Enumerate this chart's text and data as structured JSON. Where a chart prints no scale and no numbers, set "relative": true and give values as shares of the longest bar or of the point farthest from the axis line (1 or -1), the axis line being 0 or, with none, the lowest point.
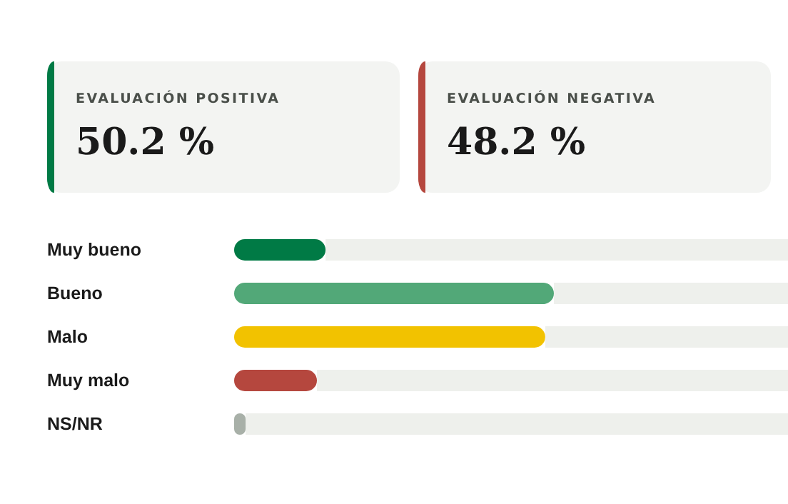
{
  "chart_data": {
    "type": "bar",
    "orientation": "horizontal",
    "relative": true,
    "categories": [
      "Muy bueno",
      "Bueno",
      "Malo",
      "Muy malo",
      "NS/NR"
    ],
    "values": [
      0.286,
      1,
      0.973,
      0.259,
      0.036
    ],
    "colors": [
      "#007a45",
      "#52a878",
      "#f2c200",
      "#b5473e",
      "#a8b0a8"
    ],
    "annotations": [
      "EVALUACIÓN POSITIVA",
      "50.2 %",
      "EVALUACIÓN NEGATIVA",
      "48.2 %"
    ]
  }
}
